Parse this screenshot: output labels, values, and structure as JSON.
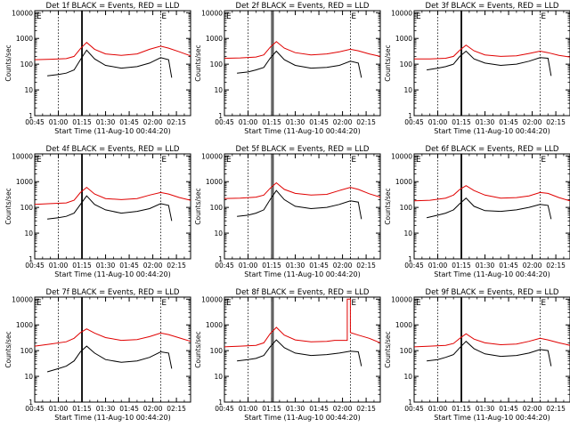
{
  "colors": {
    "events": "#000000",
    "lld": "#e00000",
    "axis": "#000000"
  },
  "common": {
    "xlabel": "Start Time (11-Aug-10 00:44:20)",
    "ylabel": "Counts/sec",
    "x_ticks": [
      "00:45",
      "01:00",
      "01:15",
      "01:30",
      "01:45",
      "02:00",
      "02:15"
    ],
    "y_ticks": [
      "1",
      "10",
      "100",
      "1000",
      "10000"
    ],
    "y_scale": "log",
    "marker_letter": "E"
  },
  "chart_data": [
    {
      "type": "line",
      "title": "Det 1f BLACK = Events, RED = LLD",
      "xlim": [
        "00:45",
        "02:24"
      ],
      "ylim": [
        1,
        12000
      ],
      "series": [
        {
          "color": "#e00000",
          "x": [
            "00:45",
            "00:55",
            "01:05",
            "01:10",
            "01:14",
            "01:18",
            "01:23",
            "01:30",
            "01:40",
            "01:50",
            "01:58",
            "02:05",
            "02:10",
            "02:17",
            "02:24"
          ],
          "values": [
            150,
            155,
            165,
            200,
            400,
            700,
            380,
            250,
            220,
            250,
            380,
            500,
            420,
            300,
            210
          ]
        },
        {
          "color": "#000000",
          "x": [
            "00:53",
            "01:00",
            "01:05",
            "01:10",
            "01:14",
            "01:18",
            "01:23",
            "01:30",
            "01:40",
            "01:50",
            "01:58",
            "02:05",
            "02:10",
            "02:12"
          ],
          "values": [
            35,
            40,
            45,
            60,
            150,
            350,
            160,
            90,
            70,
            80,
            110,
            180,
            150,
            30
          ]
        }
      ]
    },
    {
      "type": "line",
      "title": "Det 2f BLACK = Events, RED = LLD",
      "xlim": [
        "00:45",
        "02:24"
      ],
      "ylim": [
        1,
        12000
      ],
      "series": [
        {
          "color": "#e00000",
          "x": [
            "00:45",
            "00:55",
            "01:05",
            "01:10",
            "01:14",
            "01:18",
            "01:23",
            "01:30",
            "01:40",
            "01:50",
            "01:58",
            "02:05",
            "02:10",
            "02:17",
            "02:24"
          ],
          "values": [
            170,
            175,
            190,
            230,
            450,
            750,
            420,
            280,
            230,
            250,
            300,
            380,
            330,
            250,
            200
          ]
        },
        {
          "color": "#000000",
          "x": [
            "00:53",
            "01:00",
            "01:05",
            "01:10",
            "01:14",
            "01:18",
            "01:23",
            "01:30",
            "01:40",
            "01:50",
            "01:58",
            "02:05",
            "02:10",
            "02:12"
          ],
          "values": [
            45,
            50,
            60,
            75,
            170,
            320,
            150,
            90,
            70,
            75,
            90,
            130,
            110,
            30
          ]
        }
      ]
    },
    {
      "type": "line",
      "title": "Det 3f BLACK = Events, RED = LLD",
      "xlim": [
        "00:45",
        "02:24"
      ],
      "ylim": [
        1,
        12000
      ],
      "series": [
        {
          "color": "#e00000",
          "x": [
            "00:45",
            "00:55",
            "01:05",
            "01:10",
            "01:14",
            "01:18",
            "01:23",
            "01:30",
            "01:40",
            "01:50",
            "01:58",
            "02:05",
            "02:10",
            "02:17",
            "02:24"
          ],
          "values": [
            160,
            160,
            170,
            200,
            350,
            550,
            330,
            230,
            200,
            210,
            260,
            320,
            280,
            220,
            190
          ]
        },
        {
          "color": "#000000",
          "x": [
            "00:53",
            "01:00",
            "01:05",
            "01:10",
            "01:14",
            "01:18",
            "01:23",
            "01:30",
            "01:40",
            "01:50",
            "01:58",
            "02:05",
            "02:10",
            "02:12"
          ],
          "values": [
            60,
            70,
            80,
            100,
            200,
            320,
            160,
            110,
            90,
            100,
            130,
            180,
            170,
            35
          ]
        }
      ]
    },
    {
      "type": "line",
      "title": "Det 4f BLACK = Events, RED = LLD",
      "xlim": [
        "00:45",
        "02:24"
      ],
      "ylim": [
        1,
        12000
      ],
      "series": [
        {
          "color": "#e00000",
          "x": [
            "00:45",
            "00:55",
            "01:05",
            "01:10",
            "01:14",
            "01:18",
            "01:23",
            "01:30",
            "01:40",
            "01:50",
            "01:58",
            "02:05",
            "02:10",
            "02:17",
            "02:24"
          ],
          "values": [
            130,
            140,
            150,
            190,
            380,
            600,
            330,
            220,
            200,
            220,
            300,
            380,
            330,
            240,
            190
          ]
        },
        {
          "color": "#000000",
          "x": [
            "00:53",
            "01:00",
            "01:05",
            "01:10",
            "01:14",
            "01:18",
            "01:23",
            "01:30",
            "01:40",
            "01:50",
            "01:58",
            "02:05",
            "02:10",
            "02:12"
          ],
          "values": [
            35,
            40,
            45,
            60,
            130,
            280,
            130,
            80,
            60,
            70,
            90,
            140,
            120,
            30
          ]
        }
      ]
    },
    {
      "type": "line",
      "title": "Det 5f BLACK = Events, RED = LLD",
      "xlim": [
        "00:45",
        "02:24"
      ],
      "ylim": [
        1,
        12000
      ],
      "series": [
        {
          "color": "#e00000",
          "x": [
            "00:45",
            "00:55",
            "01:05",
            "01:10",
            "01:14",
            "01:18",
            "01:23",
            "01:30",
            "01:40",
            "01:50",
            "01:58",
            "02:05",
            "02:10",
            "02:17",
            "02:24"
          ],
          "values": [
            220,
            230,
            250,
            300,
            550,
            900,
            500,
            350,
            300,
            320,
            450,
            600,
            500,
            340,
            250
          ]
        },
        {
          "color": "#000000",
          "x": [
            "00:53",
            "01:00",
            "01:05",
            "01:10",
            "01:14",
            "01:18",
            "01:23",
            "01:30",
            "01:40",
            "01:50",
            "01:58",
            "02:05",
            "02:10",
            "02:12"
          ],
          "values": [
            45,
            50,
            60,
            80,
            200,
            450,
            200,
            110,
            90,
            100,
            130,
            180,
            160,
            35
          ]
        }
      ]
    },
    {
      "type": "line",
      "title": "Det 6f BLACK = Events, RED = LLD",
      "xlim": [
        "00:45",
        "02:24"
      ],
      "ylim": [
        1,
        12000
      ],
      "series": [
        {
          "color": "#e00000",
          "x": [
            "00:45",
            "00:55",
            "01:05",
            "01:10",
            "01:14",
            "01:18",
            "01:23",
            "01:30",
            "01:40",
            "01:50",
            "01:58",
            "02:05",
            "02:10",
            "02:17",
            "02:24"
          ],
          "values": [
            180,
            190,
            230,
            300,
            500,
            700,
            450,
            300,
            230,
            240,
            280,
            380,
            350,
            240,
            180
          ]
        },
        {
          "color": "#000000",
          "x": [
            "00:53",
            "01:00",
            "01:05",
            "01:10",
            "01:14",
            "01:18",
            "01:23",
            "01:30",
            "01:40",
            "01:50",
            "01:58",
            "02:05",
            "02:10",
            "02:12"
          ],
          "values": [
            40,
            50,
            60,
            80,
            140,
            230,
            110,
            75,
            70,
            80,
            100,
            130,
            120,
            35
          ]
        }
      ]
    },
    {
      "type": "line",
      "title": "Det 7f BLACK = Events, RED = LLD",
      "xlim": [
        "00:45",
        "02:24"
      ],
      "ylim": [
        1,
        12000
      ],
      "series": [
        {
          "color": "#e00000",
          "x": [
            "00:45",
            "00:55",
            "01:05",
            "01:10",
            "01:14",
            "01:18",
            "01:23",
            "01:30",
            "01:40",
            "01:50",
            "01:58",
            "02:05",
            "02:10",
            "02:17",
            "02:24"
          ],
          "values": [
            150,
            180,
            220,
            300,
            500,
            700,
            480,
            320,
            250,
            270,
            350,
            480,
            420,
            310,
            230
          ]
        },
        {
          "color": "#000000",
          "x": [
            "00:53",
            "01:00",
            "01:05",
            "01:10",
            "01:14",
            "01:18",
            "01:23",
            "01:30",
            "01:40",
            "01:50",
            "01:58",
            "02:05",
            "02:10",
            "02:12"
          ],
          "values": [
            15,
            20,
            25,
            40,
            90,
            150,
            80,
            45,
            35,
            40,
            55,
            90,
            80,
            20
          ]
        }
      ]
    },
    {
      "type": "line",
      "title": "Det 8f BLACK = Events, RED = LLD",
      "xlim": [
        "00:45",
        "02:24"
      ],
      "ylim": [
        1,
        12000
      ],
      "series": [
        {
          "color": "#e00000",
          "x": [
            "00:45",
            "00:55",
            "01:05",
            "01:10",
            "01:14",
            "01:18",
            "01:23",
            "01:30",
            "01:40",
            "01:50",
            "01:55",
            "02:03",
            "02:03",
            "02:05",
            "02:05",
            "02:10",
            "02:17",
            "02:24"
          ],
          "values": [
            140,
            150,
            160,
            200,
            450,
            800,
            400,
            260,
            220,
            230,
            250,
            250,
            10000,
            10000,
            500,
            400,
            300,
            200
          ]
        },
        {
          "color": "#000000",
          "x": [
            "00:53",
            "01:00",
            "01:05",
            "01:10",
            "01:14",
            "01:18",
            "01:23",
            "01:30",
            "01:40",
            "01:50",
            "01:58",
            "02:05",
            "02:10",
            "02:12"
          ],
          "values": [
            40,
            45,
            50,
            65,
            140,
            260,
            130,
            80,
            65,
            70,
            80,
            95,
            90,
            25
          ]
        }
      ]
    },
    {
      "type": "line",
      "title": "Det 9f BLACK = Events, RED = LLD",
      "xlim": [
        "00:45",
        "02:24"
      ],
      "ylim": [
        1,
        12000
      ],
      "series": [
        {
          "color": "#e00000",
          "x": [
            "00:45",
            "00:55",
            "01:05",
            "01:10",
            "01:14",
            "01:18",
            "01:23",
            "01:30",
            "01:40",
            "01:50",
            "01:58",
            "02:05",
            "02:10",
            "02:17",
            "02:24"
          ],
          "values": [
            140,
            150,
            160,
            190,
            300,
            450,
            280,
            200,
            170,
            180,
            230,
            300,
            260,
            200,
            160
          ]
        },
        {
          "color": "#000000",
          "x": [
            "00:53",
            "01:00",
            "01:05",
            "01:10",
            "01:14",
            "01:18",
            "01:23",
            "01:30",
            "01:40",
            "01:50",
            "01:58",
            "02:05",
            "02:10",
            "02:12"
          ],
          "values": [
            40,
            45,
            55,
            70,
            130,
            230,
            120,
            75,
            60,
            65,
            80,
            110,
            100,
            25
          ]
        }
      ]
    }
  ]
}
